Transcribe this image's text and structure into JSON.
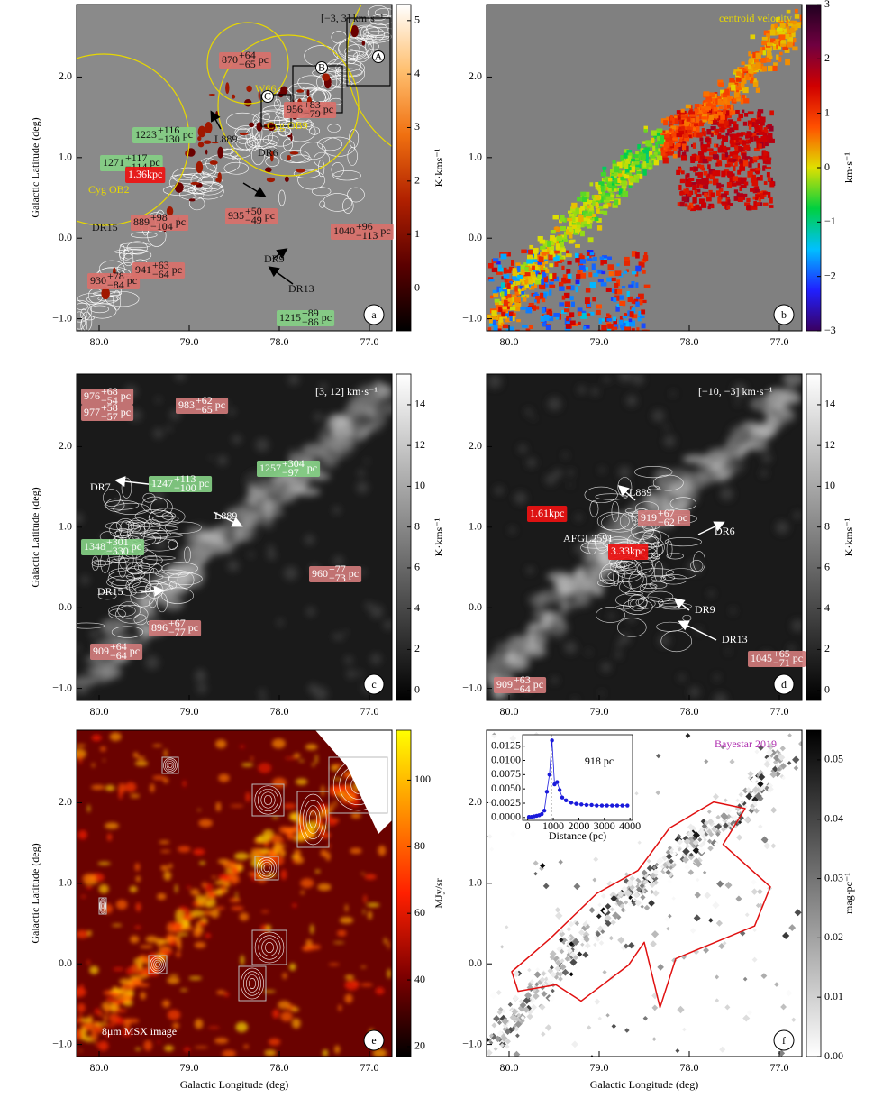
{
  "axes": {
    "xlim": [
      80.25,
      76.75
    ],
    "ylim": [
      -1.15,
      2.9
    ],
    "xticks": [
      {
        "value": 80,
        "label": "80.0"
      },
      {
        "value": 79,
        "label": "79.0"
      },
      {
        "value": 78,
        "label": "78.0"
      },
      {
        "value": 77,
        "label": "77.0"
      }
    ],
    "yticks": [
      {
        "value": -1,
        "label": "−1.0"
      },
      {
        "value": 0,
        "label": "0.0"
      },
      {
        "value": 1,
        "label": "1.0"
      },
      {
        "value": 2,
        "label": "2.0"
      }
    ]
  },
  "panels": [
    {
      "letter": "a",
      "ylabel": "Galactic Latitude (deg)",
      "colormap": "afmhot",
      "colorbar": {
        "label": "K·kms⁻¹",
        "lim": [
          -0.8,
          5.3
        ],
        "ticks": [
          0,
          1,
          2,
          3,
          4,
          5
        ]
      },
      "labels": [
        {
          "text": "[−3, 3] km·s⁻¹",
          "color": "#111"
        },
        {
          "d": "870",
          "up": "+64",
          "lo": "−65",
          "unit": "pc",
          "box": "#d9706a"
        },
        {
          "d": "956",
          "up": "+83",
          "lo": "−79",
          "unit": "pc",
          "box": "#d9706a"
        },
        {
          "d": "1223",
          "up": "+116",
          "lo": "−130",
          "unit": "pc",
          "box": "#84cf84"
        },
        {
          "d": "1271",
          "up": "+117",
          "lo": "−114",
          "unit": "pc",
          "box": "#84cf84"
        },
        {
          "text": "1.36kpc",
          "color": "#fff",
          "box": "#ee1111"
        },
        {
          "d": "889",
          "up": "+98",
          "lo": "−104",
          "unit": "pc",
          "box": "#d9706a"
        },
        {
          "d": "935",
          "up": "+50",
          "lo": "−49",
          "unit": "pc",
          "box": "#d9706a"
        },
        {
          "d": "1040",
          "up": "+96",
          "lo": "−113",
          "unit": "pc",
          "box": "#d9706a"
        },
        {
          "d": "941",
          "up": "+63",
          "lo": "−64",
          "unit": "pc",
          "box": "#d9706a"
        },
        {
          "d": "930",
          "up": "+78",
          "lo": "−84",
          "unit": "pc",
          "box": "#d9706a"
        },
        {
          "d": "1215",
          "up": "+89",
          "lo": "−86",
          "unit": "pc",
          "box": "#84cf84"
        },
        {
          "text": "Cyg OB2",
          "color": "#e8d800"
        },
        {
          "text": "W66",
          "color": "#e8d800"
        },
        {
          "text": "Cyg OB9",
          "color": "#e8d800"
        },
        {
          "text": "L889",
          "color": "#111"
        },
        {
          "text": "DR6",
          "color": "#111"
        },
        {
          "text": "DR15",
          "color": "#111"
        },
        {
          "text": "DR9",
          "color": "#111"
        },
        {
          "text": "DR13",
          "color": "#111"
        },
        {
          "text": "A",
          "circle": true
        },
        {
          "text": "B",
          "circle": true
        },
        {
          "text": "C",
          "circle": true
        }
      ]
    },
    {
      "letter": "b",
      "colormap": "velocity",
      "colorbar": {
        "label": "km·s⁻¹",
        "lim": [
          -3,
          3
        ],
        "ticks": [
          {
            "value": -3,
            "label": "−3"
          },
          {
            "value": -2,
            "label": "−2"
          },
          {
            "value": -1,
            "label": "−1"
          },
          0,
          1,
          2,
          3
        ]
      },
      "labels": [
        {
          "text": "centroid velocity",
          "color": "#e8d800"
        }
      ]
    },
    {
      "letter": "c",
      "ylabel": "Galactic Latitude (deg)",
      "colormap": "gray",
      "colorbar": {
        "label": "K·kms⁻¹",
        "lim": [
          -0.5,
          15.5
        ],
        "ticks": [
          0,
          2,
          4,
          6,
          8,
          10,
          12,
          14
        ]
      },
      "labels": [
        {
          "text": "[3, 12] km·s⁻¹",
          "color": "#fff"
        },
        {
          "d": "976",
          "up": "+68",
          "lo": "−54",
          "unit": "pc",
          "box": "#cf7a7a",
          "color": "#fff"
        },
        {
          "d": "977",
          "up": "+58",
          "lo": "−57",
          "unit": "pc",
          "box": "#cf7a7a",
          "color": "#fff"
        },
        {
          "d": "983",
          "up": "+62",
          "lo": "−65",
          "unit": "pc",
          "box": "#cf7a7a",
          "color": "#fff"
        },
        {
          "d": "1257",
          "up": "+304",
          "lo": "−97",
          "unit": "pc",
          "box": "#84cf84",
          "color": "#fff"
        },
        {
          "d": "1247",
          "up": "+113",
          "lo": "−100",
          "unit": "pc",
          "box": "#84cf84",
          "color": "#fff"
        },
        {
          "text": "DR7",
          "color": "#fff"
        },
        {
          "text": "L889",
          "color": "#fff"
        },
        {
          "d": "1348",
          "up": "+301",
          "lo": "−330",
          "unit": "pc",
          "box": "#84cf84",
          "color": "#fff"
        },
        {
          "text": "DR15",
          "color": "#fff"
        },
        {
          "d": "960",
          "up": "+77",
          "lo": "−73",
          "unit": "pc",
          "box": "#cf7a7a",
          "color": "#fff"
        },
        {
          "d": "896",
          "up": "+67",
          "lo": "−77",
          "unit": "pc",
          "box": "#cf7a7a",
          "color": "#fff"
        },
        {
          "d": "909",
          "up": "+64",
          "lo": "−64",
          "unit": "pc",
          "box": "#cf7a7a",
          "color": "#fff"
        }
      ]
    },
    {
      "letter": "d",
      "colormap": "gray",
      "colorbar": {
        "label": "K·kms⁻¹",
        "lim": [
          -0.5,
          15.5
        ],
        "ticks": [
          0,
          2,
          4,
          6,
          8,
          10,
          12,
          14
        ]
      },
      "labels": [
        {
          "text": "[−10, −3] km·s⁻¹",
          "color": "#fff"
        },
        {
          "text": "1.61kpc",
          "color": "#fff",
          "box": "#ee1111"
        },
        {
          "text": "L889",
          "color": "#fff"
        },
        {
          "text": "AFGL2591",
          "color": "#fff"
        },
        {
          "d": "919",
          "up": "+67",
          "lo": "−62",
          "unit": "pc",
          "box": "#cf7a7a",
          "color": "#fff"
        },
        {
          "text": "3.33kpc",
          "color": "#fff",
          "box": "#ee1111"
        },
        {
          "text": "DR6",
          "color": "#fff"
        },
        {
          "text": "DR9",
          "color": "#fff"
        },
        {
          "text": "DR13",
          "color": "#fff"
        },
        {
          "d": "1045",
          "up": "+65",
          "lo": "−71",
          "unit": "pc",
          "box": "#cf7a7a",
          "color": "#fff"
        },
        {
          "d": "909",
          "up": "+63",
          "lo": "−64",
          "unit": "pc",
          "box": "#cf7a7a",
          "color": "#fff"
        }
      ]
    },
    {
      "letter": "e",
      "ylabel": "Galactic Latitude (deg)",
      "xlabel": "Galactic Longitude (deg)",
      "colormap": "hot",
      "colorbar": {
        "label": "MJy/sr",
        "lim": [
          17,
          115
        ],
        "ticks": [
          20,
          40,
          60,
          80,
          100
        ]
      },
      "labels": [
        {
          "text": "8μm MSX image",
          "color": "#fff"
        }
      ]
    },
    {
      "letter": "f",
      "xlabel": "Galactic Longitude (deg)",
      "colormap": "dust",
      "colorbar": {
        "label": "mag·pc⁻¹",
        "lim": [
          0,
          0.055
        ],
        "ticks": [
          {
            "value": 0,
            "label": "0.00"
          },
          {
            "value": 0.01,
            "label": "0.01"
          },
          {
            "value": 0.02,
            "label": "0.02"
          },
          {
            "value": 0.03,
            "label": "0.03"
          },
          {
            "value": 0.04,
            "label": "0.04"
          },
          {
            "value": 0.05,
            "label": "0.05"
          }
        ]
      },
      "labels": [
        {
          "text": "Bayestar 2019",
          "color": "#b030b0"
        }
      ],
      "inset": {
        "xlabel": "Distance (pc)",
        "distance": 918,
        "distance_label": "918 pc",
        "color": "#1a1adb",
        "xlim": [
          -200,
          4100
        ],
        "ylim": [
          -0.0005,
          0.0145
        ],
        "xticks": [
          0,
          1000,
          2000,
          3000,
          4000
        ],
        "yticks": [
          {
            "value": 0,
            "label": "0.0000"
          },
          {
            "value": 0.0025,
            "label": "0.0025"
          },
          {
            "value": 0.005,
            "label": "0.0050"
          },
          {
            "value": 0.0075,
            "label": "0.0075"
          },
          {
            "value": 0.01,
            "label": "0.0100"
          },
          {
            "value": 0.0125,
            "label": "0.0125"
          }
        ],
        "x": [
          50,
          150,
          250,
          350,
          450,
          550,
          650,
          750,
          850,
          950,
          1050,
          1150,
          1250,
          1350,
          1500,
          1700,
          1900,
          2100,
          2300,
          2500,
          2700,
          2900,
          3100,
          3300,
          3500,
          3700,
          3900
        ],
        "values": [
          0.0001,
          0.0001,
          0.0002,
          0.0003,
          0.0004,
          0.0006,
          0.0012,
          0.0045,
          0.0075,
          0.0135,
          0.0058,
          0.0062,
          0.0048,
          0.0035,
          0.003,
          0.0026,
          0.0024,
          0.0023,
          0.0022,
          0.0022,
          0.0021,
          0.0021,
          0.0021,
          0.0021,
          0.0021,
          0.0021,
          0.0021
        ]
      }
    }
  ]
}
